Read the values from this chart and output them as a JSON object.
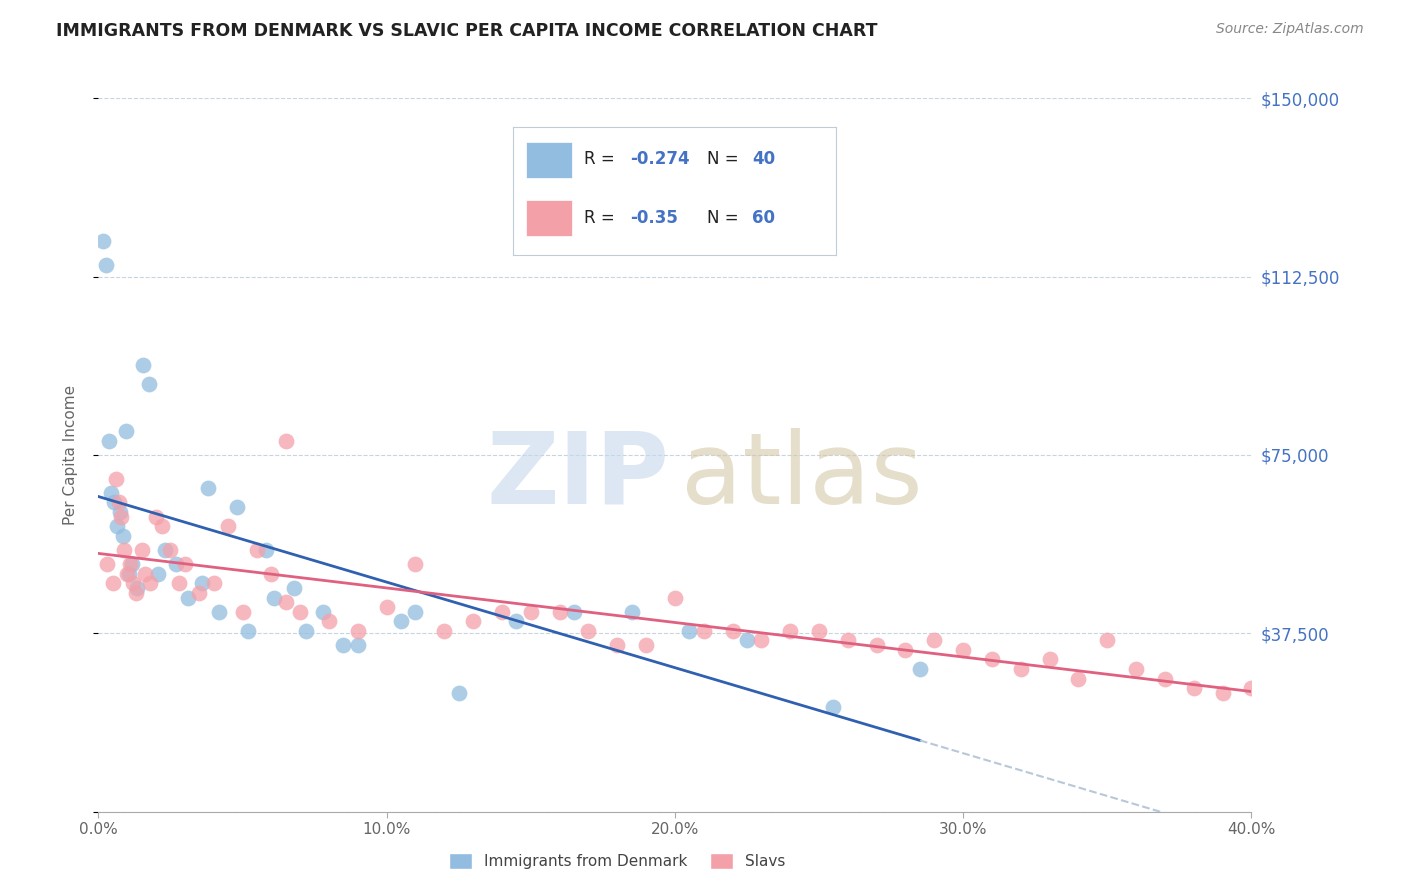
{
  "title": "IMMIGRANTS FROM DENMARK VS SLAVIC PER CAPITA INCOME CORRELATION CHART",
  "source": "Source: ZipAtlas.com",
  "ylabel": "Per Capita Income",
  "xlabel_ticks": [
    "0.0%",
    "10.0%",
    "20.0%",
    "30.0%",
    "40.0%"
  ],
  "xlabel_vals": [
    0.0,
    10.0,
    20.0,
    30.0,
    40.0
  ],
  "ytick_vals": [
    0,
    37500,
    75000,
    112500,
    150000
  ],
  "ytick_labels": [
    "",
    "$37,500",
    "$75,000",
    "$112,500",
    "$150,000"
  ],
  "denmark_R": -0.274,
  "denmark_N": 40,
  "slavic_R": -0.35,
  "slavic_N": 60,
  "denmark_color": "#92bde0",
  "slavic_color": "#f4a0a8",
  "denmark_line_color": "#3060b0",
  "slavic_line_color": "#e06080",
  "dashed_ext_color": "#b8c8d8",
  "label_color": "#4472c4",
  "text_black": "#222222",
  "source_color": "#888888",
  "bg_color": "#ffffff",
  "grid_color": "#c8d4de",
  "legend_border_color": "#c0ccd8",
  "denmark_x": [
    0.15,
    0.25,
    0.35,
    0.45,
    0.55,
    0.65,
    0.75,
    0.85,
    0.95,
    1.05,
    1.15,
    1.35,
    1.55,
    1.75,
    2.05,
    2.3,
    2.7,
    3.1,
    3.6,
    4.2,
    5.2,
    6.1,
    7.2,
    8.5,
    10.5,
    12.5,
    14.5,
    16.5,
    18.5,
    20.5,
    22.5,
    25.5,
    28.5,
    3.8,
    4.8,
    5.8,
    6.8,
    7.8,
    9.0,
    11.0
  ],
  "denmark_y": [
    120000,
    115000,
    78000,
    67000,
    65000,
    60000,
    63000,
    58000,
    80000,
    50000,
    52000,
    47000,
    94000,
    90000,
    50000,
    55000,
    52000,
    45000,
    48000,
    42000,
    38000,
    45000,
    38000,
    35000,
    40000,
    25000,
    40000,
    42000,
    42000,
    38000,
    36000,
    22000,
    30000,
    68000,
    64000,
    55000,
    47000,
    42000,
    35000,
    42000
  ],
  "slavic_x": [
    0.3,
    0.5,
    0.6,
    0.7,
    0.8,
    0.9,
    1.0,
    1.1,
    1.2,
    1.3,
    1.5,
    1.6,
    1.8,
    2.0,
    2.2,
    2.5,
    2.8,
    3.0,
    3.5,
    4.0,
    4.5,
    5.0,
    5.5,
    6.0,
    6.5,
    7.0,
    8.0,
    9.0,
    10.0,
    11.0,
    12.0,
    13.0,
    14.0,
    15.0,
    16.0,
    17.0,
    18.0,
    19.0,
    20.0,
    21.0,
    22.0,
    23.0,
    24.0,
    25.0,
    26.0,
    27.0,
    28.0,
    29.0,
    30.0,
    31.0,
    32.0,
    33.0,
    34.0,
    35.0,
    36.0,
    37.0,
    38.0,
    39.0,
    40.0,
    6.5
  ],
  "slavic_y": [
    52000,
    48000,
    70000,
    65000,
    62000,
    55000,
    50000,
    52000,
    48000,
    46000,
    55000,
    50000,
    48000,
    62000,
    60000,
    55000,
    48000,
    52000,
    46000,
    48000,
    60000,
    42000,
    55000,
    50000,
    44000,
    42000,
    40000,
    38000,
    43000,
    52000,
    38000,
    40000,
    42000,
    42000,
    42000,
    38000,
    35000,
    35000,
    45000,
    38000,
    38000,
    36000,
    38000,
    38000,
    36000,
    35000,
    34000,
    36000,
    34000,
    32000,
    30000,
    32000,
    28000,
    36000,
    30000,
    28000,
    26000,
    25000,
    26000,
    78000
  ]
}
